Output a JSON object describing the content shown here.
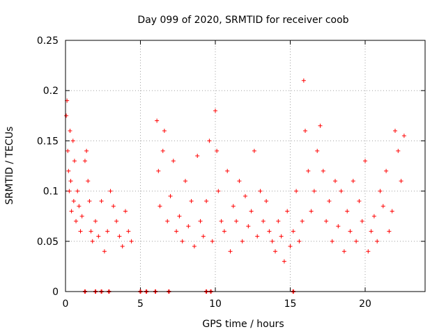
{
  "chart_data": {
    "type": "scatter",
    "title": "Day 099 of 2020, SRMTID for receiver coob",
    "xlabel": "GPS time / hours",
    "ylabel": "SRMTID / TECUs",
    "xlim": [
      0,
      24
    ],
    "ylim": [
      0,
      0.25
    ],
    "xticks": [
      0,
      5,
      10,
      15,
      20
    ],
    "xtick_labels": [
      "0",
      "5",
      "10",
      "15",
      "20"
    ],
    "yticks": [
      0,
      0.05,
      0.1,
      0.15,
      0.2,
      0.25
    ],
    "ytick_labels": [
      "0",
      "0.05",
      "0.1",
      "0.15",
      "0.2",
      "0.25"
    ],
    "grid": true,
    "marker": "+",
    "color": "#ff0000",
    "series": [
      {
        "name": "SRMTID",
        "x": [
          0.05,
          0.1,
          0.15,
          0.2,
          0.25,
          0.3,
          0.35,
          0.4,
          0.5,
          0.55,
          0.6,
          0.7,
          0.8,
          0.9,
          1.0,
          1.1,
          1.3,
          1.4,
          1.5,
          1.6,
          1.7,
          1.8,
          2.0,
          2.2,
          2.4,
          2.6,
          2.8,
          3.0,
          3.2,
          3.4,
          3.6,
          3.8,
          4.0,
          4.2,
          4.4,
          6.1,
          6.2,
          6.3,
          6.5,
          6.6,
          6.8,
          7.0,
          7.2,
          7.4,
          7.6,
          7.8,
          8.0,
          8.2,
          8.4,
          8.6,
          8.8,
          9.0,
          9.2,
          9.4,
          9.6,
          9.8,
          10.0,
          10.1,
          10.2,
          10.4,
          10.6,
          10.8,
          11.0,
          11.2,
          11.4,
          11.6,
          11.8,
          12.0,
          12.2,
          12.4,
          12.6,
          12.8,
          13.0,
          13.2,
          13.4,
          13.6,
          13.8,
          14.0,
          14.2,
          14.4,
          14.6,
          14.8,
          15.0,
          15.2,
          15.4,
          15.6,
          15.8,
          15.9,
          16.0,
          16.2,
          16.4,
          16.6,
          16.8,
          17.0,
          17.2,
          17.4,
          17.6,
          17.8,
          18.0,
          18.2,
          18.4,
          18.6,
          18.8,
          19.0,
          19.2,
          19.4,
          19.6,
          19.8,
          20.0,
          20.2,
          20.4,
          20.6,
          20.8,
          21.0,
          21.2,
          21.4,
          21.6,
          21.8,
          22.0,
          22.2,
          22.4,
          22.6
        ],
        "y": [
          0.175,
          0.19,
          0.14,
          0.12,
          0.1,
          0.16,
          0.11,
          0.08,
          0.15,
          0.09,
          0.13,
          0.07,
          0.1,
          0.085,
          0.06,
          0.075,
          0.13,
          0.14,
          0.11,
          0.09,
          0.06,
          0.05,
          0.07,
          0.055,
          0.09,
          0.04,
          0.06,
          0.1,
          0.085,
          0.07,
          0.055,
          0.045,
          0.08,
          0.06,
          0.05,
          0.17,
          0.12,
          0.085,
          0.14,
          0.16,
          0.07,
          0.095,
          0.13,
          0.06,
          0.075,
          0.05,
          0.11,
          0.065,
          0.09,
          0.045,
          0.135,
          0.07,
          0.055,
          0.09,
          0.15,
          0.05,
          0.18,
          0.14,
          0.1,
          0.07,
          0.06,
          0.12,
          0.04,
          0.085,
          0.07,
          0.11,
          0.05,
          0.095,
          0.065,
          0.08,
          0.14,
          0.055,
          0.1,
          0.07,
          0.09,
          0.06,
          0.05,
          0.04,
          0.07,
          0.055,
          0.03,
          0.08,
          0.045,
          0.06,
          0.1,
          0.05,
          0.07,
          0.21,
          0.16,
          0.12,
          0.08,
          0.1,
          0.14,
          0.165,
          0.12,
          0.07,
          0.09,
          0.05,
          0.11,
          0.065,
          0.1,
          0.04,
          0.08,
          0.06,
          0.11,
          0.05,
          0.09,
          0.07,
          0.13,
          0.04,
          0.06,
          0.075,
          0.05,
          0.1,
          0.085,
          0.12,
          0.06,
          0.08,
          0.16,
          0.14,
          0.11,
          0.155
        ],
        "zero_x": [
          1.3,
          2.0,
          2.4,
          2.9,
          5.0,
          5.4,
          6.0,
          6.9,
          9.4,
          9.7,
          15.2
        ]
      }
    ]
  }
}
